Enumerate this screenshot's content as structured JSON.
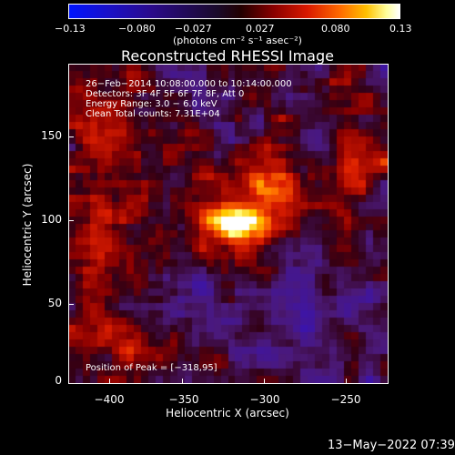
{
  "colorbar": {
    "ticks": [
      "−0.13",
      "−0.080",
      "−0.027",
      "0.027",
      "0.080",
      "0.13"
    ],
    "units": "(photons cm⁻² s⁻¹ asec⁻²)"
  },
  "title": "Reconstructed RHESSI Image",
  "annotations": {
    "time_range": "26−Feb−2014 10:08:00.000 to 10:14:00.000",
    "detectors": "Detectors: 3F 4F 5F 6F 7F 8F, Att 0",
    "energy": "Energy Range: 3.0 − 6.0 keV",
    "clean": "Clean     Total counts: 7.31E+04",
    "peak": "Position of Peak = [−318,95]"
  },
  "axes": {
    "xlabel": "Heliocentric X (arcsec)",
    "ylabel": "Heliocentric Y (arcsec)",
    "xticks": [
      "−400",
      "−350",
      "−300",
      "−250"
    ],
    "yticks": [
      "150",
      "100",
      "50",
      "0"
    ]
  },
  "timestamp": "13−May−2022 07:39"
}
